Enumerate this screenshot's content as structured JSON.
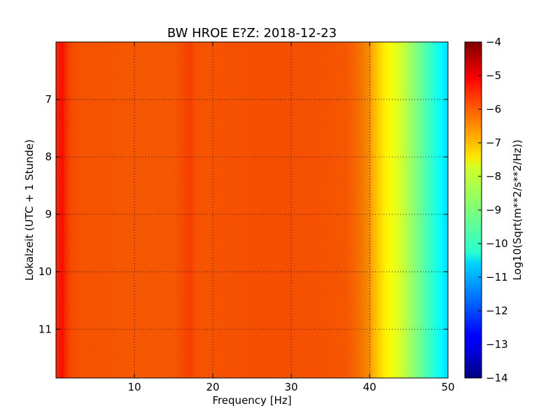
{
  "chart_data": {
    "type": "heatmap",
    "title": "BW HROE E?Z: 2018-12-23",
    "xlabel": "Frequency [Hz]",
    "ylabel": "Lokalzeit (UTC + 1 Stunde)",
    "xlim": [
      0,
      50
    ],
    "ylim": [
      11.85,
      6.0
    ],
    "x_ticks": [
      10,
      20,
      30,
      40,
      50
    ],
    "y_ticks": [
      7,
      8,
      9,
      10,
      11
    ],
    "grid": true,
    "colorbar": {
      "label": "Log10(Sqrt(m**2/s**2/Hz))",
      "range": [
        -14,
        -4
      ],
      "ticks": [
        -4,
        -5,
        -6,
        -7,
        -8,
        -9,
        -10,
        -11,
        -12,
        -13,
        -14
      ],
      "colormap": "jet"
    },
    "frequency_profile": {
      "frequencies_hz": [
        0,
        0.5,
        1,
        1.5,
        2,
        3,
        5,
        10,
        15,
        17,
        18,
        20,
        25,
        30,
        35,
        37,
        38,
        39,
        40,
        41,
        42,
        43,
        44,
        45,
        46,
        47,
        48,
        49,
        50
      ],
      "level_log10": [
        -5.7,
        -5.4,
        -5.5,
        -5.8,
        -6.0,
        -6.1,
        -6.1,
        -6.15,
        -6.15,
        -5.9,
        -6.1,
        -6.1,
        -6.05,
        -6.05,
        -6.1,
        -6.15,
        -6.3,
        -6.5,
        -6.8,
        -7.2,
        -7.6,
        -7.9,
        -8.2,
        -8.6,
        -9.0,
        -9.4,
        -9.8,
        -10.2,
        -10.6
      ]
    },
    "features": [
      {
        "description_hz": 17.2,
        "level_log10": -5.8
      },
      {
        "description_hz": 0.8,
        "level_log10": -5.3
      }
    ]
  }
}
